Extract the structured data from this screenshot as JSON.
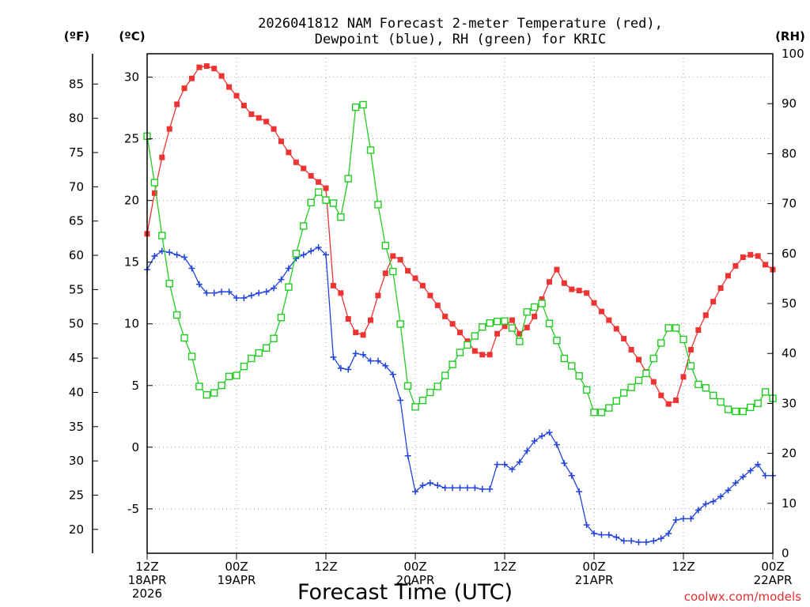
{
  "chart_data": {
    "type": "line",
    "title": [
      "2026041812 NAM Forecast 2-meter Temperature (red),",
      "Dewpoint (blue), RH (green) for KRIC"
    ],
    "xlabel": "Forecast Time (UTC)",
    "credit": "coolwx.com/models",
    "units": {
      "f": "(ºF)",
      "c": "(ºC)",
      "rh": "(RH)"
    },
    "x_tick_labels": [
      {
        "x": 0,
        "lines": [
          "12Z",
          "18APR",
          "2026"
        ]
      },
      {
        "x": 12,
        "lines": [
          "00Z",
          "19APR"
        ]
      },
      {
        "x": 24,
        "lines": [
          "12Z"
        ]
      },
      {
        "x": 36,
        "lines": [
          "00Z",
          "20APR"
        ]
      },
      {
        "x": 48,
        "lines": [
          "12Z"
        ]
      },
      {
        "x": 60,
        "lines": [
          "00Z",
          "21APR"
        ]
      },
      {
        "x": 72,
        "lines": [
          "12Z"
        ]
      },
      {
        "x": 84,
        "lines": [
          "00Z",
          "22APR"
        ]
      }
    ],
    "xlim": [
      0,
      84
    ],
    "ylim_c": [
      -8.6,
      31.9
    ],
    "ylim_rh": [
      0,
      100
    ],
    "y_ticks_c": [
      "-5",
      "0",
      "5",
      "10",
      "15",
      "20",
      "25",
      "30"
    ],
    "y_ticks_f": [
      "20",
      "25",
      "30",
      "35",
      "40",
      "45",
      "50",
      "55",
      "60",
      "65",
      "70",
      "75",
      "80",
      "85"
    ],
    "y_ticks_rh": [
      "0",
      "10",
      "20",
      "30",
      "40",
      "50",
      "60",
      "70",
      "80",
      "90",
      "100"
    ],
    "grid": true,
    "series": [
      {
        "name": "Temperature",
        "color": "#ee3333",
        "marker": "filled-square",
        "axis": "c",
        "values": [
          17.3,
          20.6,
          23.5,
          25.8,
          27.8,
          29.1,
          29.9,
          30.8,
          30.9,
          30.7,
          30.1,
          29.2,
          28.5,
          27.7,
          27.0,
          26.7,
          26.4,
          25.8,
          24.8,
          23.9,
          23.1,
          22.6,
          22.0,
          21.5,
          21.0,
          13.1,
          12.5,
          10.4,
          9.3,
          9.1,
          10.3,
          12.3,
          14.1,
          15.5,
          15.2,
          14.3,
          13.7,
          13.1,
          12.3,
          11.5,
          10.6,
          10.0,
          9.3,
          8.6,
          7.8,
          7.5,
          7.5,
          9.2,
          9.8,
          10.3,
          9.2,
          9.7,
          10.6,
          12.0,
          13.4,
          14.4,
          13.3,
          12.8,
          12.7,
          12.5,
          11.7,
          11.0,
          10.3,
          9.6,
          8.8,
          7.9,
          7.1,
          6.1,
          5.3,
          4.2,
          3.5,
          3.8,
          5.7,
          7.9,
          9.5,
          10.7,
          11.8,
          12.9,
          13.9,
          14.7,
          15.4,
          15.6,
          15.5,
          14.8,
          14.4
        ]
      },
      {
        "name": "Dewpoint",
        "color": "#2244dd",
        "marker": "plus",
        "axis": "c",
        "values": [
          14.4,
          15.5,
          15.9,
          15.8,
          15.6,
          15.4,
          14.5,
          13.2,
          12.5,
          12.5,
          12.6,
          12.6,
          12.1,
          12.1,
          12.3,
          12.5,
          12.6,
          12.9,
          13.6,
          14.5,
          15.3,
          15.6,
          15.9,
          16.2,
          15.6,
          7.3,
          6.4,
          6.3,
          7.6,
          7.5,
          7.0,
          7.0,
          6.6,
          5.9,
          3.8,
          -0.7,
          -3.6,
          -3.1,
          -2.9,
          -3.1,
          -3.3,
          -3.3,
          -3.3,
          -3.3,
          -3.3,
          -3.4,
          -3.4,
          -1.4,
          -1.4,
          -1.8,
          -1.2,
          -0.3,
          0.5,
          0.9,
          1.2,
          0.2,
          -1.3,
          -2.3,
          -3.6,
          -6.3,
          -7.0,
          -7.1,
          -7.1,
          -7.3,
          -7.6,
          -7.6,
          -7.7,
          -7.7,
          -7.6,
          -7.4,
          -7.0,
          -5.9,
          -5.8,
          -5.8,
          -5.1,
          -4.6,
          -4.4,
          -4.0,
          -3.5,
          -2.9,
          -2.4,
          -1.9,
          -1.4,
          -2.3,
          -2.3
        ]
      },
      {
        "name": "RH",
        "color": "#22cc22",
        "marker": "open-square",
        "axis": "rh",
        "values": [
          83.5,
          74.2,
          63.6,
          54.0,
          47.7,
          43.1,
          39.4,
          33.4,
          31.7,
          32.1,
          33.6,
          35.4,
          35.6,
          37.4,
          39.0,
          40.1,
          41.1,
          43.0,
          47.2,
          53.3,
          60.0,
          65.5,
          70.2,
          72.3,
          70.7,
          70.1,
          67.3,
          75.0,
          89.3,
          89.8,
          80.7,
          69.8,
          61.6,
          56.4,
          45.9,
          33.5,
          29.3,
          30.6,
          32.2,
          33.4,
          35.6,
          37.8,
          40.2,
          41.7,
          43.5,
          45.3,
          46.1,
          46.4,
          46.5,
          45.1,
          42.4,
          48.3,
          49.3,
          50.0,
          46.0,
          42.6,
          39.0,
          37.5,
          35.5,
          32.7,
          28.2,
          28.2,
          29.1,
          30.5,
          32.1,
          33.2,
          34.6,
          36.0,
          39.0,
          42.1,
          45.1,
          45.1,
          42.8,
          37.5,
          33.8,
          33.1,
          31.6,
          30.3,
          28.8,
          28.4,
          28.4,
          29.2,
          30.0,
          32.3,
          31.0
        ]
      }
    ]
  }
}
